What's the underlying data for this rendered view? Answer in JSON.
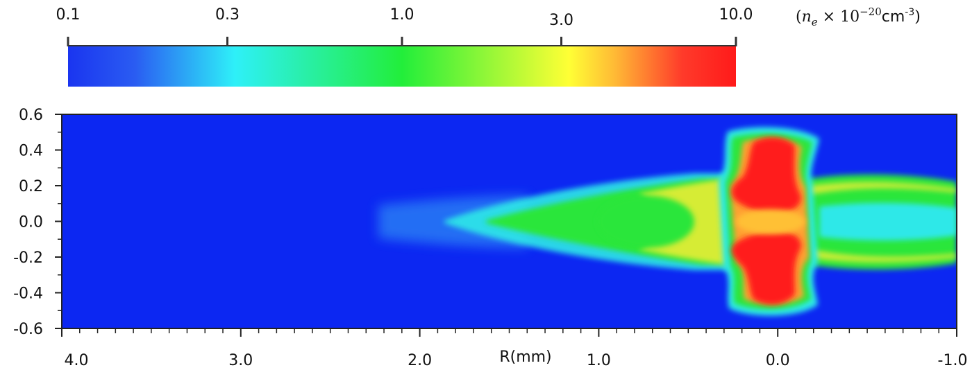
{
  "chart_data": {
    "type": "heatmap",
    "title": "",
    "colorbar": {
      "label_parts": {
        "open": "(",
        "n": "n",
        "n_sub": "e",
        "times": " × 10",
        "exp": "−20",
        "unit": "cm",
        "unit_exp": "-3",
        "close": ")"
      },
      "scale": "log",
      "range": [
        0.1,
        10.0
      ],
      "ticks": [
        {
          "value": 0.1,
          "label": "0.1"
        },
        {
          "value": 0.3,
          "label": "0.3"
        },
        {
          "value": 1.0,
          "label": "1.0"
        },
        {
          "value": 3.0,
          "label": "3.0"
        },
        {
          "value": 10.0,
          "label": "10.0"
        }
      ],
      "colors": [
        "#1a35f0",
        "#2a5cf2",
        "#2ef0f8",
        "#22ee3a",
        "#ffff35",
        "#ffb835",
        "#ff3a2a",
        "#ff1a1a"
      ]
    },
    "x_axis": {
      "label": "R(mm)",
      "range": [
        4.0,
        -1.0
      ],
      "major_ticks": [
        {
          "value": 4.0,
          "label": "4.0"
        },
        {
          "value": 3.0,
          "label": "3.0"
        },
        {
          "value": 2.0,
          "label": "2.0"
        },
        {
          "value": 1.0,
          "label": "1.0"
        },
        {
          "value": 0.0,
          "label": "0.0"
        },
        {
          "value": -1.0,
          "label": "-1.0"
        }
      ],
      "minor_step": 0.1
    },
    "y_axis": {
      "label": "",
      "range": [
        -0.6,
        0.6
      ],
      "major_ticks": [
        {
          "value": 0.6,
          "label": "0.6"
        },
        {
          "value": 0.4,
          "label": "0.4"
        },
        {
          "value": 0.2,
          "label": "0.2"
        },
        {
          "value": 0.0,
          "label": "0.0"
        },
        {
          "value": -0.2,
          "label": "-0.2"
        },
        {
          "value": -0.4,
          "label": "-0.4"
        },
        {
          "value": -0.6,
          "label": "-0.6"
        }
      ],
      "minor_step": 0.1
    },
    "background_color": "#0c27f2",
    "grid": false,
    "legend": "colorbar-top"
  }
}
